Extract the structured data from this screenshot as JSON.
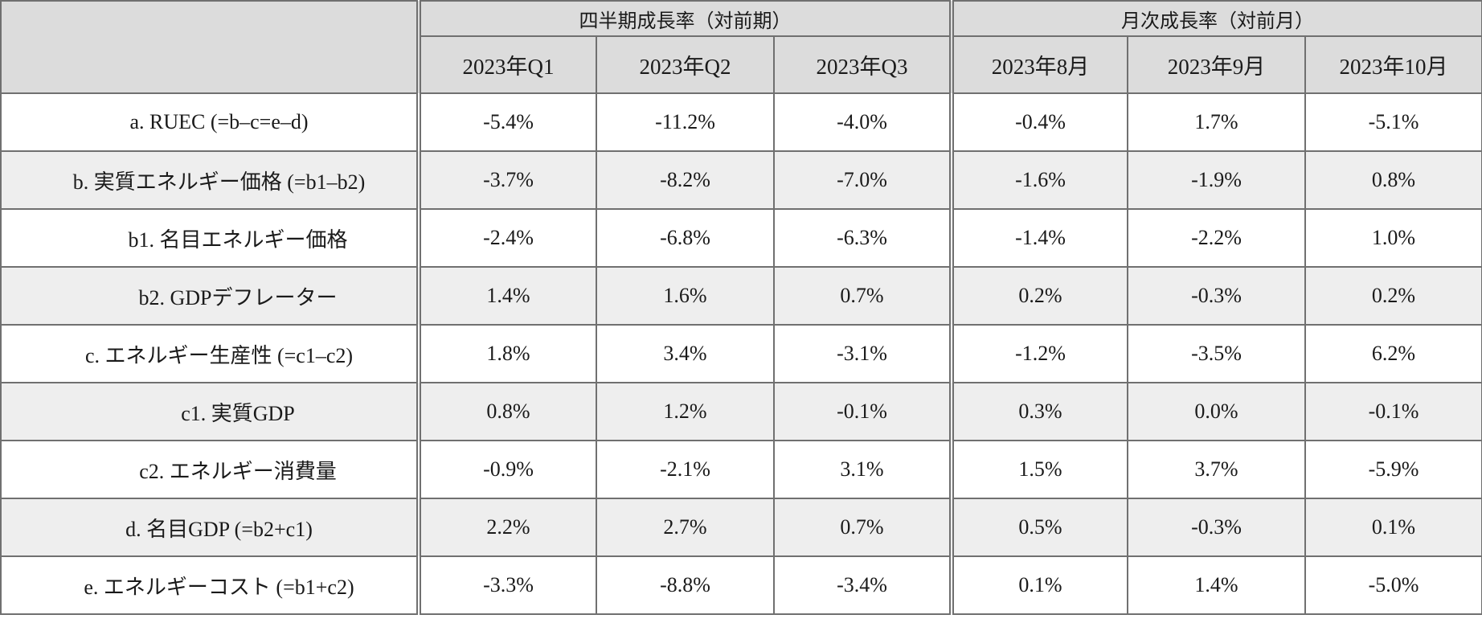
{
  "header": {
    "corner": "",
    "group_quarterly": "四半期成長率（対前期）",
    "group_monthly": "月次成長率（対前月）",
    "columns": [
      "2023年Q1",
      "2023年Q2",
      "2023年Q3",
      "2023年8月",
      "2023年9月",
      "2023年10月"
    ]
  },
  "rows": [
    {
      "label": "a. RUEC (=b–c=e–d)",
      "indent": 0,
      "shaded": false,
      "values": [
        "-5.4%",
        "-11.2%",
        "-4.0%",
        "-0.4%",
        "1.7%",
        "-5.1%"
      ]
    },
    {
      "label": "b. 実質エネルギー価格 (=b1–b2)",
      "indent": 0,
      "shaded": true,
      "values": [
        "-3.7%",
        "-8.2%",
        "-7.0%",
        "-1.6%",
        "-1.9%",
        "0.8%"
      ]
    },
    {
      "label": "b1. 名目エネルギー価格",
      "indent": 1,
      "shaded": false,
      "values": [
        "-2.4%",
        "-6.8%",
        "-6.3%",
        "-1.4%",
        "-2.2%",
        "1.0%"
      ]
    },
    {
      "label": "b2. GDPデフレーター",
      "indent": 1,
      "shaded": true,
      "values": [
        "1.4%",
        "1.6%",
        "0.7%",
        "0.2%",
        "-0.3%",
        "0.2%"
      ]
    },
    {
      "label": "c. エネルギー生産性 (=c1–c2)",
      "indent": 0,
      "shaded": false,
      "values": [
        "1.8%",
        "3.4%",
        "-3.1%",
        "-1.2%",
        "-3.5%",
        "6.2%"
      ]
    },
    {
      "label": "c1. 実質GDP",
      "indent": 1,
      "shaded": true,
      "values": [
        "0.8%",
        "1.2%",
        "-0.1%",
        "0.3%",
        "0.0%",
        "-0.1%"
      ]
    },
    {
      "label": "c2. エネルギー消費量",
      "indent": 1,
      "shaded": false,
      "values": [
        "-0.9%",
        "-2.1%",
        "3.1%",
        "1.5%",
        "3.7%",
        "-5.9%"
      ]
    },
    {
      "label": "d. 名目GDP (=b2+c1)",
      "indent": 0,
      "shaded": true,
      "values": [
        "2.2%",
        "2.7%",
        "0.7%",
        "0.5%",
        "-0.3%",
        "0.1%"
      ]
    },
    {
      "label": "e. エネルギーコスト (=b1+c2)",
      "indent": 0,
      "shaded": false,
      "values": [
        "-3.3%",
        "-8.8%",
        "-3.4%",
        "0.1%",
        "1.4%",
        "-5.0%"
      ]
    }
  ]
}
